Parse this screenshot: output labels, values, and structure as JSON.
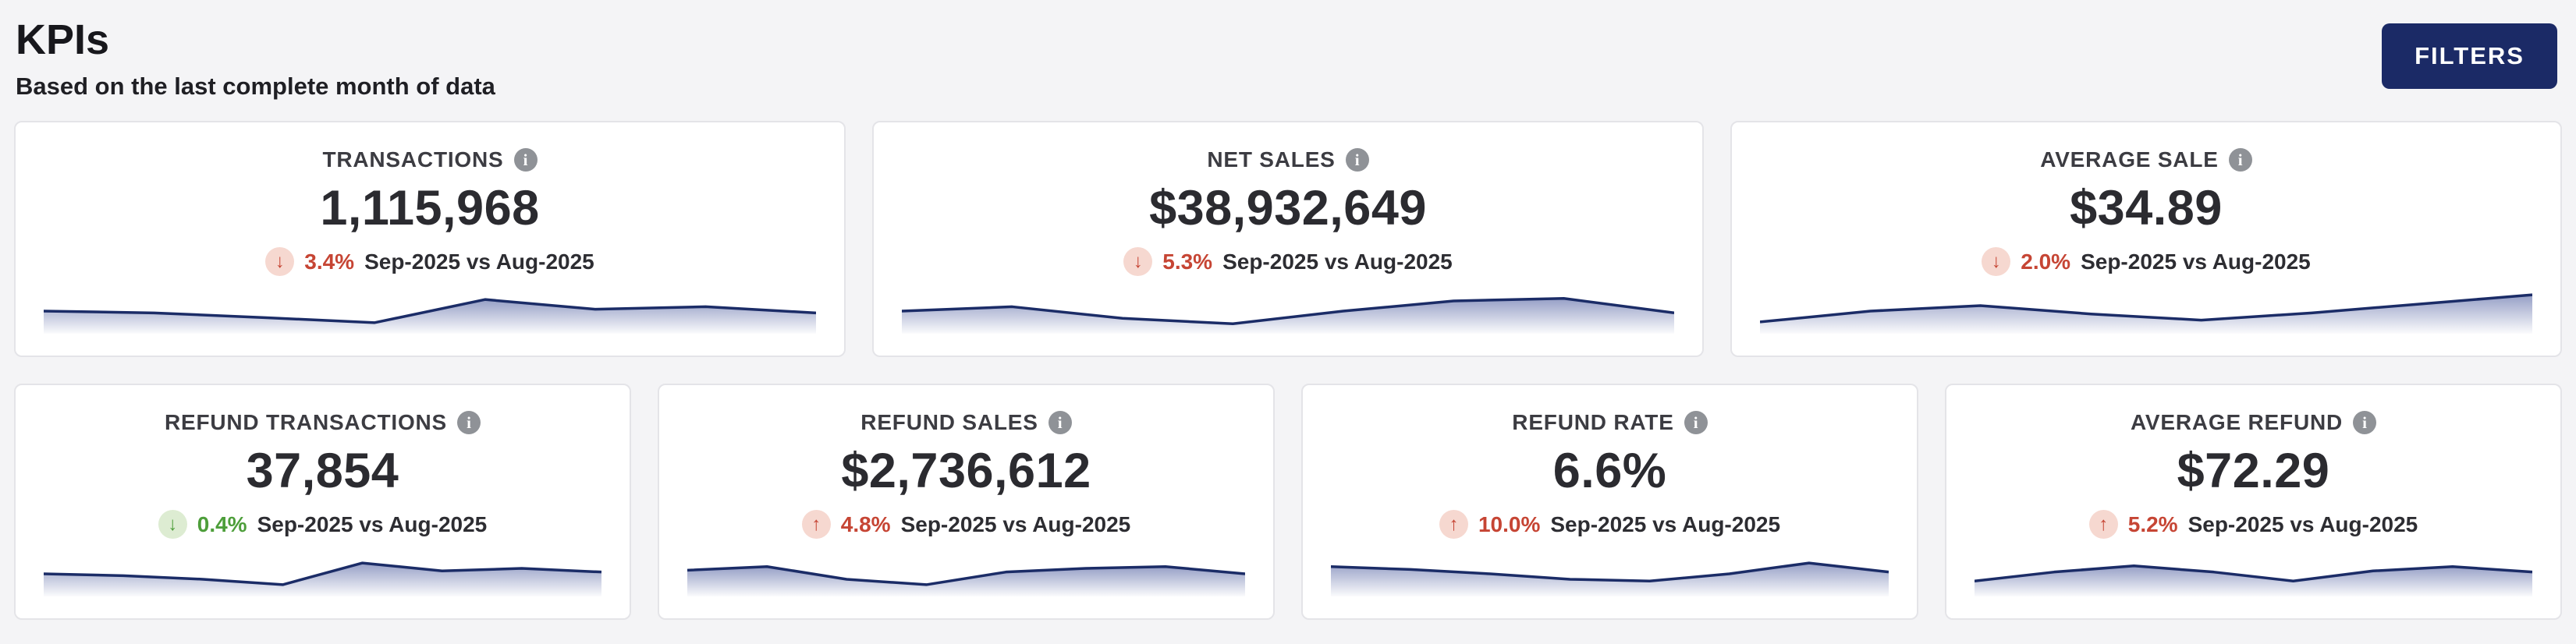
{
  "page": {
    "title": "KPIs",
    "subtitle": "Based on the last complete month of data",
    "filters_button": "FILTERS"
  },
  "icons": {
    "info": "i",
    "up_arrow": "↑",
    "down_arrow": "↓"
  },
  "colors": {
    "accent_navy": "#1b2a66",
    "negative_red": "#c64534",
    "negative_badge_bg": "#f6d8d0",
    "positive_green": "#4d9e3a",
    "positive_badge_bg": "#ddecd2",
    "spark_line": "#1b2c67",
    "spark_fill": "#2c3e8c",
    "page_bg": "#f4f4f6",
    "card_bg": "#ffffff"
  },
  "cards": [
    {
      "title": "TRANSACTIONS",
      "value": "1,115,968",
      "change": "3.4%",
      "direction": "down",
      "sentiment": "negative",
      "period": "Sep-2025 vs Aug-2025",
      "sparkline": [
        0.5,
        0.45,
        0.32,
        0.18,
        0.82,
        0.55,
        0.62,
        0.45
      ]
    },
    {
      "title": "NET SALES",
      "value": "$38,932,649",
      "change": "5.3%",
      "direction": "down",
      "sentiment": "negative",
      "period": "Sep-2025 vs Aug-2025",
      "sparkline": [
        0.5,
        0.62,
        0.3,
        0.15,
        0.5,
        0.78,
        0.85,
        0.45
      ]
    },
    {
      "title": "AVERAGE SALE",
      "value": "$34.89",
      "change": "2.0%",
      "direction": "down",
      "sentiment": "negative",
      "period": "Sep-2025 vs Aug-2025",
      "sparkline": [
        0.2,
        0.5,
        0.65,
        0.42,
        0.25,
        0.45,
        0.7,
        0.95
      ]
    },
    {
      "title": "REFUND TRANSACTIONS",
      "value": "37,854",
      "change": "0.4%",
      "direction": "down",
      "sentiment": "positive",
      "period": "Sep-2025 vs Aug-2025",
      "sparkline": [
        0.5,
        0.45,
        0.35,
        0.2,
        0.8,
        0.58,
        0.65,
        0.55
      ]
    },
    {
      "title": "REFUND SALES",
      "value": "$2,736,612",
      "change": "4.8%",
      "direction": "up",
      "sentiment": "negative",
      "period": "Sep-2025 vs Aug-2025",
      "sparkline": [
        0.6,
        0.7,
        0.35,
        0.2,
        0.55,
        0.65,
        0.7,
        0.5
      ]
    },
    {
      "title": "REFUND RATE",
      "value": "6.6%",
      "change": "10.0%",
      "direction": "up",
      "sentiment": "negative",
      "period": "Sep-2025 vs Aug-2025",
      "sparkline": [
        0.7,
        0.62,
        0.5,
        0.35,
        0.3,
        0.5,
        0.8,
        0.55
      ]
    },
    {
      "title": "AVERAGE REFUND",
      "value": "$72.29",
      "change": "5.2%",
      "direction": "up",
      "sentiment": "negative",
      "period": "Sep-2025 vs Aug-2025",
      "sparkline": [
        0.3,
        0.55,
        0.72,
        0.55,
        0.3,
        0.58,
        0.7,
        0.55
      ]
    }
  ]
}
